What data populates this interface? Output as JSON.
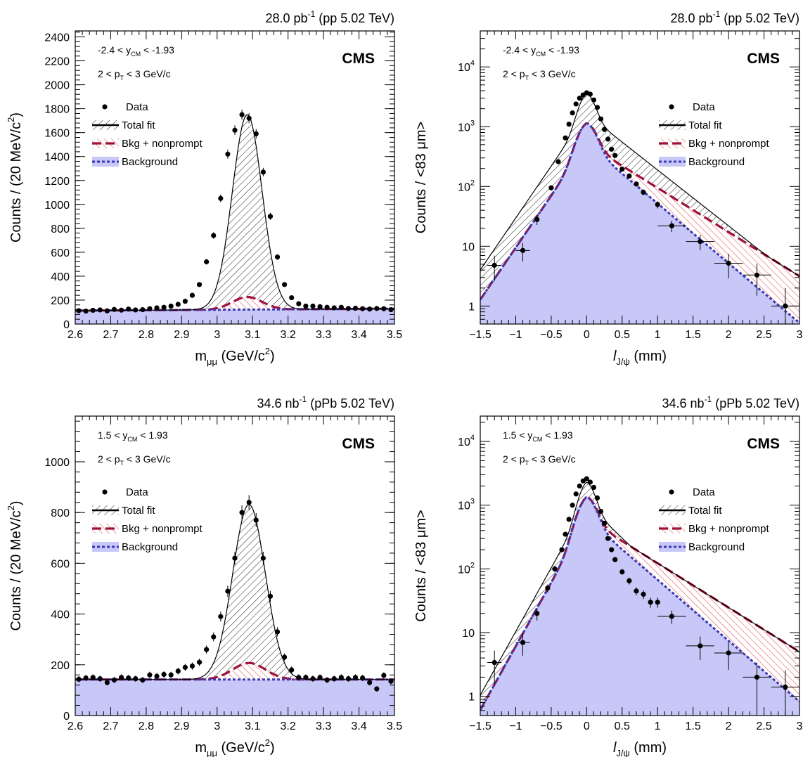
{
  "styles": {
    "background_fill": "#c8c8f8",
    "background_line": "#3a3ab8",
    "bkg_nonprompt_line": "#a0103a",
    "bkg_nonprompt_hatch": "#e84a50",
    "total_hatch": "#333333",
    "data_color": "#000000"
  },
  "legend": {
    "data": "Data",
    "total": "Total fit",
    "bkg_nonprompt": "Bkg + nonprompt",
    "background": "Background"
  },
  "chart_data": [
    {
      "id": "tl",
      "type": "scatter",
      "lumi": "28.0 pb",
      "lumi_sup": "-1",
      "lumi_tail": " (pp 5.02 TeV)",
      "cms": "CMS",
      "cut1": {
        "pre": "-2.4 < y",
        "sub": "CM",
        "post": " < -1.93"
      },
      "cut2": {
        "pre": "2 < p",
        "sub": "T",
        "post": " < 3 GeV/c"
      },
      "xlabel": {
        "main": "m",
        "sub": "μμ",
        "post": " (GeV/c",
        "sup": "2",
        "tail": ")"
      },
      "ylabel": {
        "main": "Counts / (20 MeV/c",
        "sup": "2",
        "tail": ")"
      },
      "xlim": [
        2.6,
        3.5
      ],
      "ylim": [
        0,
        2450
      ],
      "log": false,
      "xticks": [
        "2.6",
        "2.7",
        "2.8",
        "2.9",
        "3",
        "3.1",
        "3.2",
        "3.3",
        "3.4",
        "3.5"
      ],
      "yticks": [
        "0",
        "200",
        "400",
        "600",
        "800",
        "1000",
        "1200",
        "1400",
        "1600",
        "1800",
        "2000",
        "2200",
        "2400"
      ],
      "mass": {
        "mean": 3.085,
        "sigma": 0.042,
        "amp": 1630,
        "bkg_a": 112,
        "bkg_b": 18,
        "np_amp": 105
      },
      "x": [
        2.61,
        2.63,
        2.65,
        2.67,
        2.69,
        2.71,
        2.73,
        2.75,
        2.77,
        2.79,
        2.81,
        2.83,
        2.85,
        2.87,
        2.89,
        2.91,
        2.93,
        2.95,
        2.97,
        2.99,
        3.01,
        3.03,
        3.05,
        3.07,
        3.09,
        3.11,
        3.13,
        3.15,
        3.17,
        3.19,
        3.21,
        3.23,
        3.25,
        3.27,
        3.29,
        3.31,
        3.33,
        3.35,
        3.37,
        3.39,
        3.41,
        3.43,
        3.45,
        3.47,
        3.49
      ],
      "y": [
        112,
        108,
        115,
        118,
        110,
        122,
        116,
        125,
        118,
        120,
        128,
        135,
        140,
        150,
        165,
        190,
        240,
        330,
        520,
        740,
        1050,
        1420,
        1620,
        1750,
        1720,
        1590,
        1270,
        900,
        560,
        330,
        220,
        170,
        150,
        150,
        145,
        140,
        135,
        140,
        130,
        132,
        128,
        125,
        130,
        128,
        120
      ]
    },
    {
      "id": "tr",
      "type": "scatter",
      "lumi": "28.0 pb",
      "lumi_sup": "-1",
      "lumi_tail": " (pp 5.02 TeV)",
      "cms": "CMS",
      "cut1": {
        "pre": "-2.4 < y",
        "sub": "CM",
        "post": " < -1.93"
      },
      "cut2": {
        "pre": "2 < p",
        "sub": "T",
        "post": " < 3 GeV/c"
      },
      "xlabel": {
        "main": "l",
        "sub": "J/ψ",
        "post": " (mm)",
        "sup": "",
        "tail": ""
      },
      "ylabel": {
        "main": "Counts / <83 μm>",
        "sup": "",
        "tail": ""
      },
      "xlim": [
        -1.5,
        3
      ],
      "ylim": [
        0.5,
        40000
      ],
      "log": true,
      "xticks": [
        "−1.5",
        "−1",
        "−0.5",
        "0",
        "0.5",
        "1",
        "1.5",
        "2",
        "2.5",
        "3"
      ],
      "yticks": [
        "1",
        "10",
        "10",
        "10",
        "10"
      ],
      "yticks_sup": [
        "",
        "",
        "2",
        "3",
        "4"
      ],
      "ctau": {
        "peak_total": 3600,
        "peak_bkg": 1150,
        "np_peak": 1150,
        "lam_l": 4.0,
        "lam_r_total": 2.15,
        "lam_r_np": 1.7,
        "lam_r_bkg": 2.3
      },
      "x": [
        -1.3,
        -0.9,
        -0.7,
        -0.5,
        -0.4,
        -0.3,
        -0.25,
        -0.2,
        -0.15,
        -0.1,
        -0.05,
        0.0,
        0.05,
        0.1,
        0.15,
        0.2,
        0.25,
        0.3,
        0.35,
        0.4,
        0.5,
        0.6,
        0.7,
        0.8,
        1.0,
        1.2,
        1.6,
        2.0,
        2.4,
        2.8
      ],
      "y": [
        4.8,
        8.5,
        28,
        95,
        260,
        650,
        1100,
        1700,
        2400,
        3000,
        3400,
        3700,
        3500,
        2800,
        2100,
        1350,
        900,
        620,
        420,
        330,
        195,
        150,
        110,
        80,
        50,
        22,
        12,
        5.2,
        3.3,
        1.0
      ]
    },
    {
      "id": "bl",
      "type": "scatter",
      "lumi": "34.6 nb",
      "lumi_sup": "-1",
      "lumi_tail": " (pPb 5.02 TeV)",
      "cms": "CMS",
      "cut1": {
        "pre": "1.5 < y",
        "sub": "CM",
        "post": " < 1.93"
      },
      "cut2": {
        "pre": "2 < p",
        "sub": "T",
        "post": " < 3 GeV/c"
      },
      "xlabel": {
        "main": "m",
        "sub": "μμ",
        "post": " (GeV/c",
        "sup": "2",
        "tail": ")"
      },
      "ylabel": {
        "main": "Counts / (20 MeV/c",
        "sup": "2",
        "tail": ")"
      },
      "xlim": [
        2.6,
        3.5
      ],
      "ylim": [
        0,
        1180
      ],
      "log": false,
      "xticks": [
        "2.6",
        "2.7",
        "2.8",
        "2.9",
        "3",
        "3.1",
        "3.2",
        "3.3",
        "3.4",
        "3.5"
      ],
      "yticks": [
        "0",
        "200",
        "400",
        "600",
        "800",
        "1000"
      ],
      "mass": {
        "mean": 3.09,
        "sigma": 0.046,
        "amp": 690,
        "bkg_a": 142,
        "bkg_b": 0,
        "np_amp": 65
      },
      "x": [
        2.61,
        2.63,
        2.65,
        2.67,
        2.69,
        2.71,
        2.73,
        2.75,
        2.77,
        2.79,
        2.81,
        2.83,
        2.85,
        2.87,
        2.89,
        2.91,
        2.93,
        2.95,
        2.97,
        2.99,
        3.01,
        3.03,
        3.05,
        3.07,
        3.09,
        3.11,
        3.13,
        3.15,
        3.17,
        3.19,
        3.21,
        3.23,
        3.25,
        3.27,
        3.29,
        3.31,
        3.33,
        3.35,
        3.37,
        3.39,
        3.41,
        3.43,
        3.45,
        3.47,
        3.49
      ],
      "y": [
        143,
        148,
        150,
        145,
        130,
        140,
        150,
        148,
        145,
        140,
        160,
        155,
        162,
        160,
        175,
        190,
        195,
        210,
        260,
        310,
        390,
        490,
        620,
        800,
        840,
        770,
        620,
        470,
        330,
        230,
        180,
        150,
        150,
        145,
        150,
        140,
        145,
        150,
        145,
        150,
        148,
        130,
        105,
        158,
        135
      ]
    },
    {
      "id": "br",
      "type": "scatter",
      "lumi": "34.6 nb",
      "lumi_sup": "-1",
      "lumi_tail": " (pPb 5.02 TeV)",
      "cms": "CMS",
      "cut1": {
        "pre": "1.5 < y",
        "sub": "CM",
        "post": " < 1.93"
      },
      "cut2": {
        "pre": "2 < p",
        "sub": "T",
        "post": " < 3 GeV/c"
      },
      "xlabel": {
        "main": "l",
        "sub": "J/ψ",
        "post": " (mm)",
        "sup": "",
        "tail": ""
      },
      "ylabel": {
        "main": "Counts / <83 μm>",
        "sup": "",
        "tail": ""
      },
      "xlim": [
        -1.5,
        3
      ],
      "ylim": [
        0.5,
        25000
      ],
      "log": true,
      "xticks": [
        "−1.5",
        "−1",
        "−0.5",
        "0",
        "0.5",
        "1",
        "1.5",
        "2",
        "2.5",
        "3"
      ],
      "yticks": [
        "1",
        "10",
        "10",
        "10",
        "10"
      ],
      "yticks_sup": [
        "",
        "",
        "2",
        "3",
        "4"
      ],
      "ctau": {
        "peak_total": 2300,
        "peak_bkg": 1350,
        "np_peak": 1350,
        "lam_l": 4.6,
        "lam_r_total": 2.45,
        "lam_r_np": 1.6,
        "lam_r_bkg": 2.2
      },
      "x": [
        -1.3,
        -0.9,
        -0.7,
        -0.55,
        -0.45,
        -0.35,
        -0.3,
        -0.25,
        -0.2,
        -0.15,
        -0.1,
        -0.05,
        0.0,
        0.05,
        0.1,
        0.15,
        0.2,
        0.25,
        0.3,
        0.35,
        0.4,
        0.5,
        0.6,
        0.7,
        0.8,
        0.9,
        1.0,
        1.2,
        1.6,
        2.0,
        2.4,
        2.8
      ],
      "y": [
        3.4,
        7,
        20,
        50,
        100,
        200,
        350,
        600,
        1000,
        1500,
        2000,
        2400,
        2600,
        2300,
        1900,
        1300,
        800,
        520,
        300,
        200,
        140,
        90,
        65,
        45,
        40,
        30,
        30,
        18,
        6.2,
        4.8,
        2.0,
        1.4
      ]
    }
  ]
}
